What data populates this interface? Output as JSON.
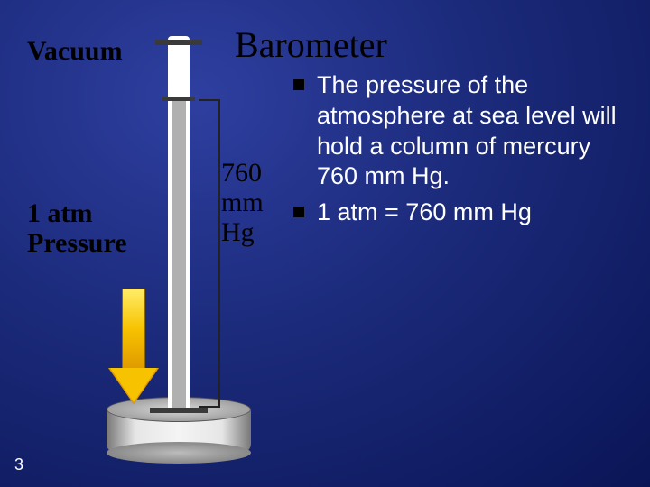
{
  "title": "Barometer",
  "labels": {
    "vacuum": "Vacuum",
    "atm_line1": "1 atm",
    "atm_line2": "Pressure",
    "hg_line1": "760",
    "hg_line2": "mm",
    "hg_line3": "Hg"
  },
  "bullets": [
    "The pressure of the atmosphere at sea level will hold a column of mercury 760 mm Hg.",
    "1 atm = 760 mm Hg"
  ],
  "page_number": "3",
  "colors": {
    "bg_center": "#2e3fa0",
    "bg_mid": "#1b2a7a",
    "bg_edge": "#0a1556",
    "title_color": "#000000",
    "body_text": "#ffffff",
    "bullet_square": "#000000",
    "arrow_fill_top": "#ffec66",
    "arrow_fill_mid": "#f7c200",
    "arrow_fill_bot": "#e09a00",
    "arrow_border": "#8a6a00",
    "mercury": "#b0b0b0",
    "tube": "#ffffff",
    "dish_light": "#e6e6e6",
    "dish_dark": "#777777"
  },
  "typography": {
    "title_fontsize_pt": 30,
    "label_fontsize_pt": 22,
    "body_fontsize_pt": 20,
    "title_family": "Times New Roman",
    "body_family": "Arial"
  },
  "barometer": {
    "column_height_mm": 760,
    "unit": "mm Hg",
    "equiv_atm": 1
  }
}
